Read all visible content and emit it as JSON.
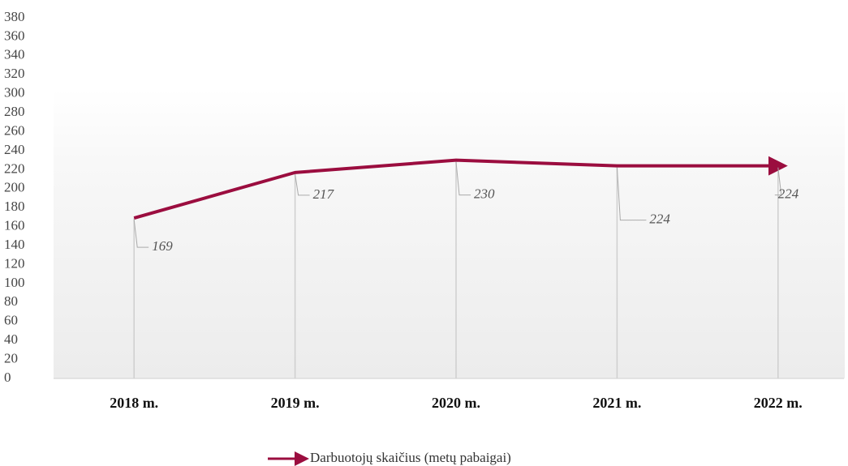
{
  "chart_data": {
    "type": "line",
    "categories": [
      "2018 m.",
      "2019 m.",
      "2020 m.",
      "2021 m.",
      "2022 m."
    ],
    "series": [
      {
        "name": "Darbuotojų skaičius (metų pabaigai)",
        "color": "#9b0d3f",
        "values": [
          169,
          217,
          230,
          224,
          224
        ]
      }
    ],
    "ylim": [
      0,
      380
    ],
    "yticks": [
      0,
      20,
      40,
      60,
      80,
      100,
      120,
      140,
      160,
      180,
      200,
      220,
      240,
      260,
      280,
      300,
      320,
      340,
      360,
      380
    ],
    "legend": "bottom",
    "grid": false
  }
}
